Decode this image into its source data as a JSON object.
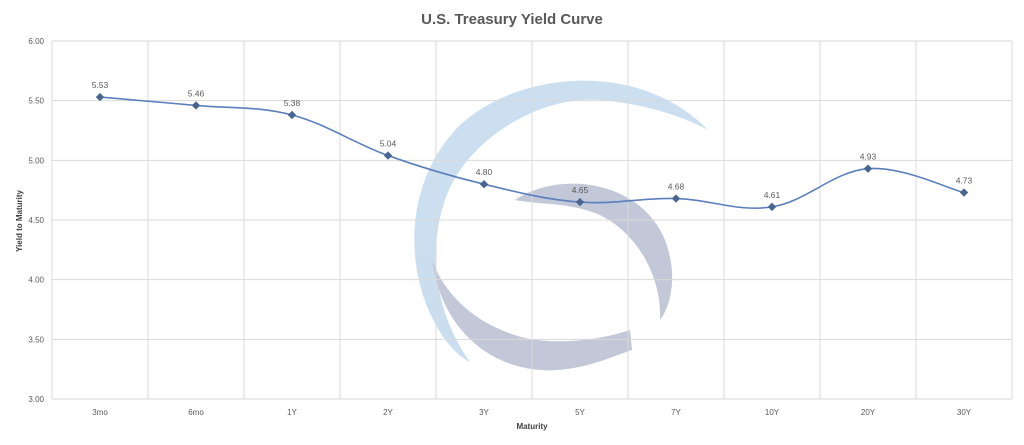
{
  "chart_data": {
    "type": "line",
    "title": "U.S. Treasury Yield Curve",
    "xlabel": "Maturity",
    "ylabel": "Yield to Maturity",
    "categories": [
      "3mo",
      "6mo",
      "1Y",
      "2Y",
      "3Y",
      "5Y",
      "7Y",
      "10Y",
      "20Y",
      "30Y"
    ],
    "series": [
      {
        "values": [
          5.53,
          5.46,
          5.38,
          5.04,
          4.8,
          4.65,
          4.68,
          4.61,
          4.93,
          4.73
        ]
      }
    ],
    "data_labels": [
      "5.53",
      "5.46",
      "5.38",
      "5.04",
      "4.80",
      "4.65",
      "4.68",
      "4.61",
      "4.93",
      "4.73"
    ],
    "y_ticks": [
      "3.00",
      "3.50",
      "4.00",
      "4.50",
      "5.00",
      "5.50",
      "6.00"
    ],
    "ylim": [
      3.0,
      6.0
    ],
    "grid": true,
    "smooth": true,
    "marker": "diamond",
    "line_color": "#5b7fbd",
    "marker_color": "#4a6690",
    "watermark_colors": [
      "#c9ddf0",
      "#bfc6d6"
    ]
  }
}
